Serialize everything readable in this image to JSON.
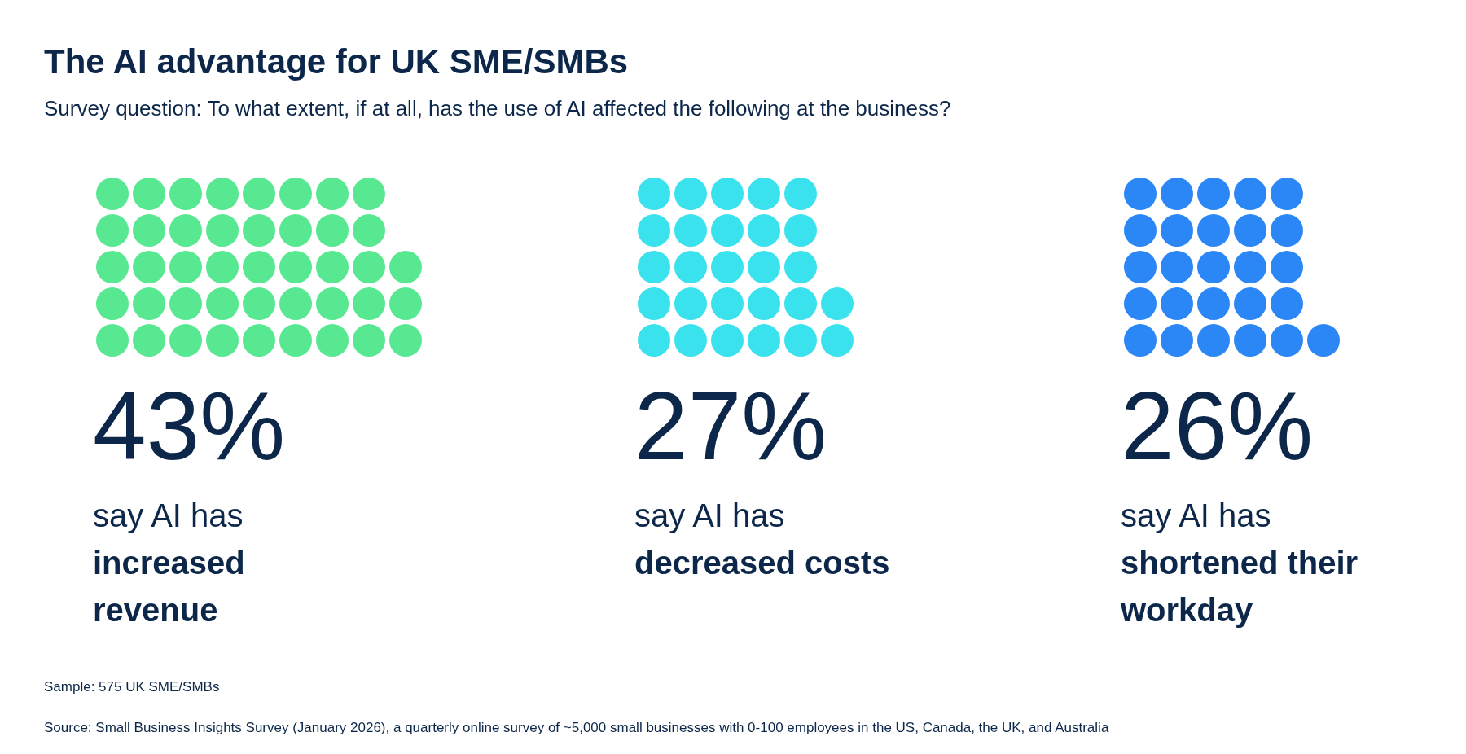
{
  "chart_data": {
    "type": "other",
    "title": "The AI advantage for UK SME/SMBs",
    "subtitle": "Survey question: To what extent, if at all, has the use of AI affected the following at the business?",
    "categories": [
      "say AI has\nincreased revenue",
      "say AI has\ndecreased costs",
      "say AI has\nshortened their workday"
    ],
    "values": [
      43,
      27,
      26
    ],
    "value_labels": [
      "43%",
      "27%",
      "26%"
    ],
    "colors": [
      "#58e891",
      "#3ae2ee",
      "#2b86f6"
    ],
    "annotations": [
      "Sample: 575 UK SME/SMBs",
      "Source: Small Business Insights Survey (January 2026), a quarterly online survey of ~5,000 small businesses with 0-100 employees in the US, Canada, the UK, and Australia"
    ]
  }
}
